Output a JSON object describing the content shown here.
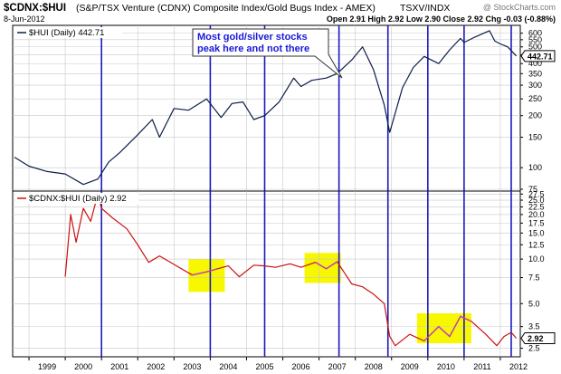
{
  "header": {
    "symbol": "$CDNX:$HUI",
    "description": "(S&P/TSX Venture (CDNX) Composite Index/Gold Bugs Index - AMEX)",
    "exchange": "TSXV/INDX",
    "watermark": "@ StockCharts.com",
    "date": "8-Jun-2012",
    "quote": "Open 2.91 High 2.92 Low 2.90 Close 2.92 Chg -0.03 (-0.88%)"
  },
  "callout": {
    "line1": "Most gold/silver stocks",
    "line2": "peak here and not there"
  },
  "colors": {
    "hui_line": "#0b1e4a",
    "ratio_line": "#cc1010",
    "ratio_highlight_line": "#c040c0",
    "highlight_fill": "#f7f700",
    "vertical_lines": "#1a1abf",
    "grid": "#c8c8c8",
    "callout_text": "#1a1ad6"
  },
  "chart_data": [
    {
      "type": "line",
      "legend": "$HUI (Daily) 442.71",
      "last_value_label": "442.71",
      "scale": "log",
      "ylim": [
        75,
        650
      ],
      "y_ticks": [
        "600",
        "550",
        "500",
        "450",
        "400",
        "350",
        "300",
        "250",
        "200",
        "150",
        "100",
        "75"
      ],
      "x_ticks": [
        "1999",
        "2000",
        "2001",
        "2002",
        "2003",
        "2004",
        "2005",
        "2006",
        "2007",
        "2008",
        "2009",
        "2010",
        "2011",
        "2012"
      ],
      "x": [
        1998.6,
        1999.0,
        1999.5,
        2000.0,
        2000.5,
        2000.9,
        2001.2,
        2001.5,
        2002.0,
        2002.4,
        2002.6,
        2003.0,
        2003.4,
        2003.9,
        2004.3,
        2004.6,
        2004.9,
        2005.2,
        2005.5,
        2005.9,
        2006.3,
        2006.5,
        2006.8,
        2007.2,
        2007.5,
        2007.9,
        2008.2,
        2008.5,
        2008.8,
        2008.95,
        2009.3,
        2009.6,
        2009.9,
        2010.3,
        2010.6,
        2010.9,
        2011.0,
        2011.3,
        2011.7,
        2011.85,
        2012.0,
        2012.2,
        2012.44
      ],
      "values": [
        115,
        102,
        95,
        92,
        80,
        86,
        108,
        122,
        155,
        190,
        150,
        220,
        215,
        250,
        195,
        235,
        240,
        190,
        200,
        240,
        330,
        295,
        320,
        330,
        350,
        420,
        500,
        370,
        230,
        160,
        290,
        380,
        440,
        400,
        480,
        560,
        530,
        570,
        620,
        540,
        520,
        500,
        442.71
      ]
    },
    {
      "type": "line",
      "legend": "$CDNX:$HUI (Daily) 2.92",
      "last_value_label": "2.92",
      "scale": "log",
      "ylim": [
        2.25,
        28
      ],
      "y_ticks": [
        "27.5",
        "25.0",
        "22.5",
        "20.0",
        "17.5",
        "15.0",
        "12.5",
        "10.0",
        "7.5",
        "5.0",
        "3.5",
        "2.5"
      ],
      "x_ticks": [
        "1999",
        "2000",
        "2001",
        "2002",
        "2003",
        "2004",
        "2005",
        "2006",
        "2007",
        "2008",
        "2009",
        "2010",
        "2011",
        "2012"
      ],
      "x": [
        2000.0,
        2000.15,
        2000.3,
        2000.5,
        2000.7,
        2000.9,
        2001.0,
        2001.3,
        2001.7,
        2002.0,
        2002.3,
        2002.6,
        2003.0,
        2003.5,
        2003.9,
        2004.2,
        2004.5,
        2004.8,
        2005.2,
        2005.5,
        2005.8,
        2006.2,
        2006.5,
        2006.9,
        2007.2,
        2007.5,
        2007.9,
        2008.2,
        2008.5,
        2008.8,
        2008.95,
        2009.1,
        2009.5,
        2009.9,
        2010.3,
        2010.6,
        2010.9,
        2011.2,
        2011.6,
        2011.9,
        2012.1,
        2012.3,
        2012.44
      ],
      "values": [
        7.6,
        20,
        13,
        22,
        18,
        27.5,
        22,
        19,
        16,
        12.5,
        9.5,
        10.5,
        9.2,
        7.8,
        8.2,
        8.6,
        9.0,
        7.6,
        9.1,
        9.0,
        8.8,
        9.3,
        8.8,
        9.5,
        8.6,
        9.6,
        6.8,
        6.5,
        5.8,
        5.0,
        3.0,
        2.6,
        3.1,
        2.8,
        3.5,
        3.0,
        4.1,
        3.8,
        3.1,
        2.6,
        3.0,
        3.2,
        2.92
      ],
      "highlights": [
        {
          "x": [
            2003.4,
            2004.4
          ],
          "y": [
            6.0,
            10.0
          ]
        },
        {
          "x": [
            2006.6,
            2007.6
          ],
          "y": [
            6.9,
            11.0
          ]
        },
        {
          "x": [
            2009.7,
            2011.2
          ],
          "y": [
            2.7,
            4.3
          ]
        }
      ]
    }
  ],
  "vertical_line_dates": [
    2001.0,
    2004.0,
    2005.5,
    2007.55,
    2008.9,
    2010.0,
    2011.0,
    2012.3
  ]
}
